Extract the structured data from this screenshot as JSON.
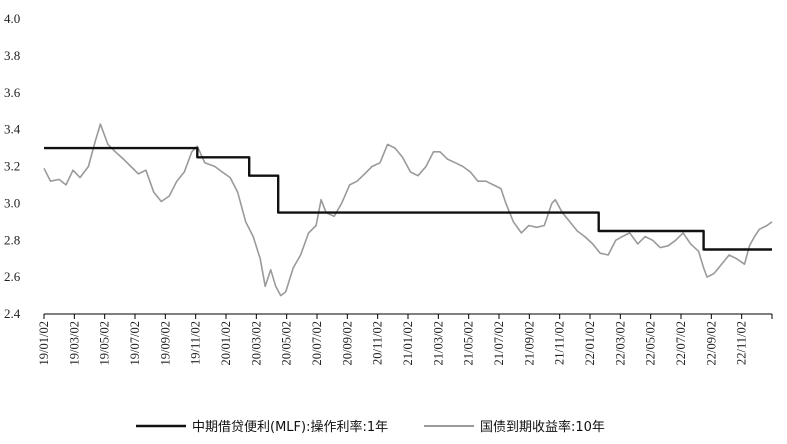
{
  "chart_data": {
    "type": "line",
    "ylim": [
      2.4,
      4.0
    ],
    "y_ticks": [
      "4.0",
      "3.8",
      "3.6",
      "3.4",
      "3.2",
      "3.0",
      "2.8",
      "2.6",
      "2.4"
    ],
    "x_range": [
      "2019-01-02",
      "2022-12-30"
    ],
    "x_ticks": [
      "19/01/02",
      "19/03/02",
      "19/05/02",
      "19/07/02",
      "19/09/02",
      "19/11/02",
      "20/01/02",
      "20/03/02",
      "20/05/02",
      "20/07/02",
      "20/09/02",
      "20/11/02",
      "21/01/02",
      "21/03/02",
      "21/05/02",
      "21/07/02",
      "21/09/02",
      "21/11/02",
      "22/01/02",
      "22/03/02",
      "22/05/02",
      "22/07/02",
      "22/09/02",
      "22/11/02"
    ],
    "grid": false,
    "legend_position": "bottom",
    "series": [
      {
        "name": "中期借贷便利(MLF):操作利率:1年",
        "color": "#111111",
        "step": true,
        "points": [
          [
            "2019-01-02",
            3.3
          ],
          [
            "2019-11-05",
            3.25
          ],
          [
            "2020-02-17",
            3.15
          ],
          [
            "2020-04-15",
            2.95
          ],
          [
            "2022-01-17",
            2.85
          ],
          [
            "2022-08-15",
            2.75
          ],
          [
            "2022-12-30",
            2.75
          ]
        ]
      },
      {
        "name": "国债到期收益率:10年",
        "color": "#9a9a9a",
        "step": false,
        "points": [
          [
            "2019-01-02",
            3.19
          ],
          [
            "2019-01-15",
            3.12
          ],
          [
            "2019-02-01",
            3.13
          ],
          [
            "2019-02-15",
            3.1
          ],
          [
            "2019-03-01",
            3.18
          ],
          [
            "2019-03-15",
            3.14
          ],
          [
            "2019-04-01",
            3.2
          ],
          [
            "2019-04-15",
            3.34
          ],
          [
            "2019-04-25",
            3.43
          ],
          [
            "2019-05-10",
            3.32
          ],
          [
            "2019-05-25",
            3.28
          ],
          [
            "2019-06-10",
            3.24
          ],
          [
            "2019-06-25",
            3.2
          ],
          [
            "2019-07-10",
            3.16
          ],
          [
            "2019-07-25",
            3.18
          ],
          [
            "2019-08-10",
            3.06
          ],
          [
            "2019-08-25",
            3.01
          ],
          [
            "2019-09-10",
            3.04
          ],
          [
            "2019-09-25",
            3.12
          ],
          [
            "2019-10-10",
            3.17
          ],
          [
            "2019-10-25",
            3.28
          ],
          [
            "2019-11-05",
            3.31
          ],
          [
            "2019-11-20",
            3.22
          ],
          [
            "2019-12-10",
            3.2
          ],
          [
            "2019-12-25",
            3.17
          ],
          [
            "2020-01-10",
            3.14
          ],
          [
            "2020-01-25",
            3.06
          ],
          [
            "2020-02-10",
            2.9
          ],
          [
            "2020-02-25",
            2.82
          ],
          [
            "2020-03-10",
            2.7
          ],
          [
            "2020-03-20",
            2.55
          ],
          [
            "2020-03-31",
            2.64
          ],
          [
            "2020-04-10",
            2.55
          ],
          [
            "2020-04-20",
            2.5
          ],
          [
            "2020-04-30",
            2.52
          ],
          [
            "2020-05-15",
            2.65
          ],
          [
            "2020-05-30",
            2.72
          ],
          [
            "2020-06-15",
            2.84
          ],
          [
            "2020-06-30",
            2.88
          ],
          [
            "2020-07-10",
            3.02
          ],
          [
            "2020-07-20",
            2.95
          ],
          [
            "2020-08-05",
            2.93
          ],
          [
            "2020-08-20",
            3.0
          ],
          [
            "2020-09-05",
            3.1
          ],
          [
            "2020-09-20",
            3.12
          ],
          [
            "2020-10-05",
            3.16
          ],
          [
            "2020-10-20",
            3.2
          ],
          [
            "2020-11-05",
            3.22
          ],
          [
            "2020-11-20",
            3.32
          ],
          [
            "2020-12-05",
            3.3
          ],
          [
            "2020-12-20",
            3.25
          ],
          [
            "2021-01-05",
            3.17
          ],
          [
            "2021-01-20",
            3.15
          ],
          [
            "2021-02-05",
            3.2
          ],
          [
            "2021-02-20",
            3.28
          ],
          [
            "2021-03-05",
            3.28
          ],
          [
            "2021-03-20",
            3.24
          ],
          [
            "2021-04-05",
            3.22
          ],
          [
            "2021-04-20",
            3.2
          ],
          [
            "2021-05-05",
            3.17
          ],
          [
            "2021-05-20",
            3.12
          ],
          [
            "2021-06-05",
            3.12
          ],
          [
            "2021-06-20",
            3.1
          ],
          [
            "2021-07-05",
            3.08
          ],
          [
            "2021-07-15",
            3.0
          ],
          [
            "2021-07-30",
            2.9
          ],
          [
            "2021-08-15",
            2.84
          ],
          [
            "2021-08-30",
            2.88
          ],
          [
            "2021-09-15",
            2.87
          ],
          [
            "2021-09-30",
            2.88
          ],
          [
            "2021-10-15",
            3.0
          ],
          [
            "2021-10-22",
            3.02
          ],
          [
            "2021-11-05",
            2.95
          ],
          [
            "2021-11-20",
            2.9
          ],
          [
            "2021-12-05",
            2.85
          ],
          [
            "2021-12-20",
            2.82
          ],
          [
            "2022-01-05",
            2.78
          ],
          [
            "2022-01-20",
            2.73
          ],
          [
            "2022-02-05",
            2.72
          ],
          [
            "2022-02-20",
            2.8
          ],
          [
            "2022-03-05",
            2.82
          ],
          [
            "2022-03-20",
            2.84
          ],
          [
            "2022-04-05",
            2.78
          ],
          [
            "2022-04-20",
            2.82
          ],
          [
            "2022-05-05",
            2.8
          ],
          [
            "2022-05-20",
            2.76
          ],
          [
            "2022-06-05",
            2.77
          ],
          [
            "2022-06-20",
            2.8
          ],
          [
            "2022-07-05",
            2.84
          ],
          [
            "2022-07-20",
            2.78
          ],
          [
            "2022-08-05",
            2.74
          ],
          [
            "2022-08-15",
            2.65
          ],
          [
            "2022-08-22",
            2.6
          ],
          [
            "2022-09-05",
            2.62
          ],
          [
            "2022-09-20",
            2.67
          ],
          [
            "2022-10-05",
            2.72
          ],
          [
            "2022-10-20",
            2.7
          ],
          [
            "2022-11-05",
            2.67
          ],
          [
            "2022-11-15",
            2.77
          ],
          [
            "2022-11-25",
            2.82
          ],
          [
            "2022-12-05",
            2.86
          ],
          [
            "2022-12-20",
            2.88
          ],
          [
            "2022-12-30",
            2.9
          ]
        ]
      }
    ]
  }
}
